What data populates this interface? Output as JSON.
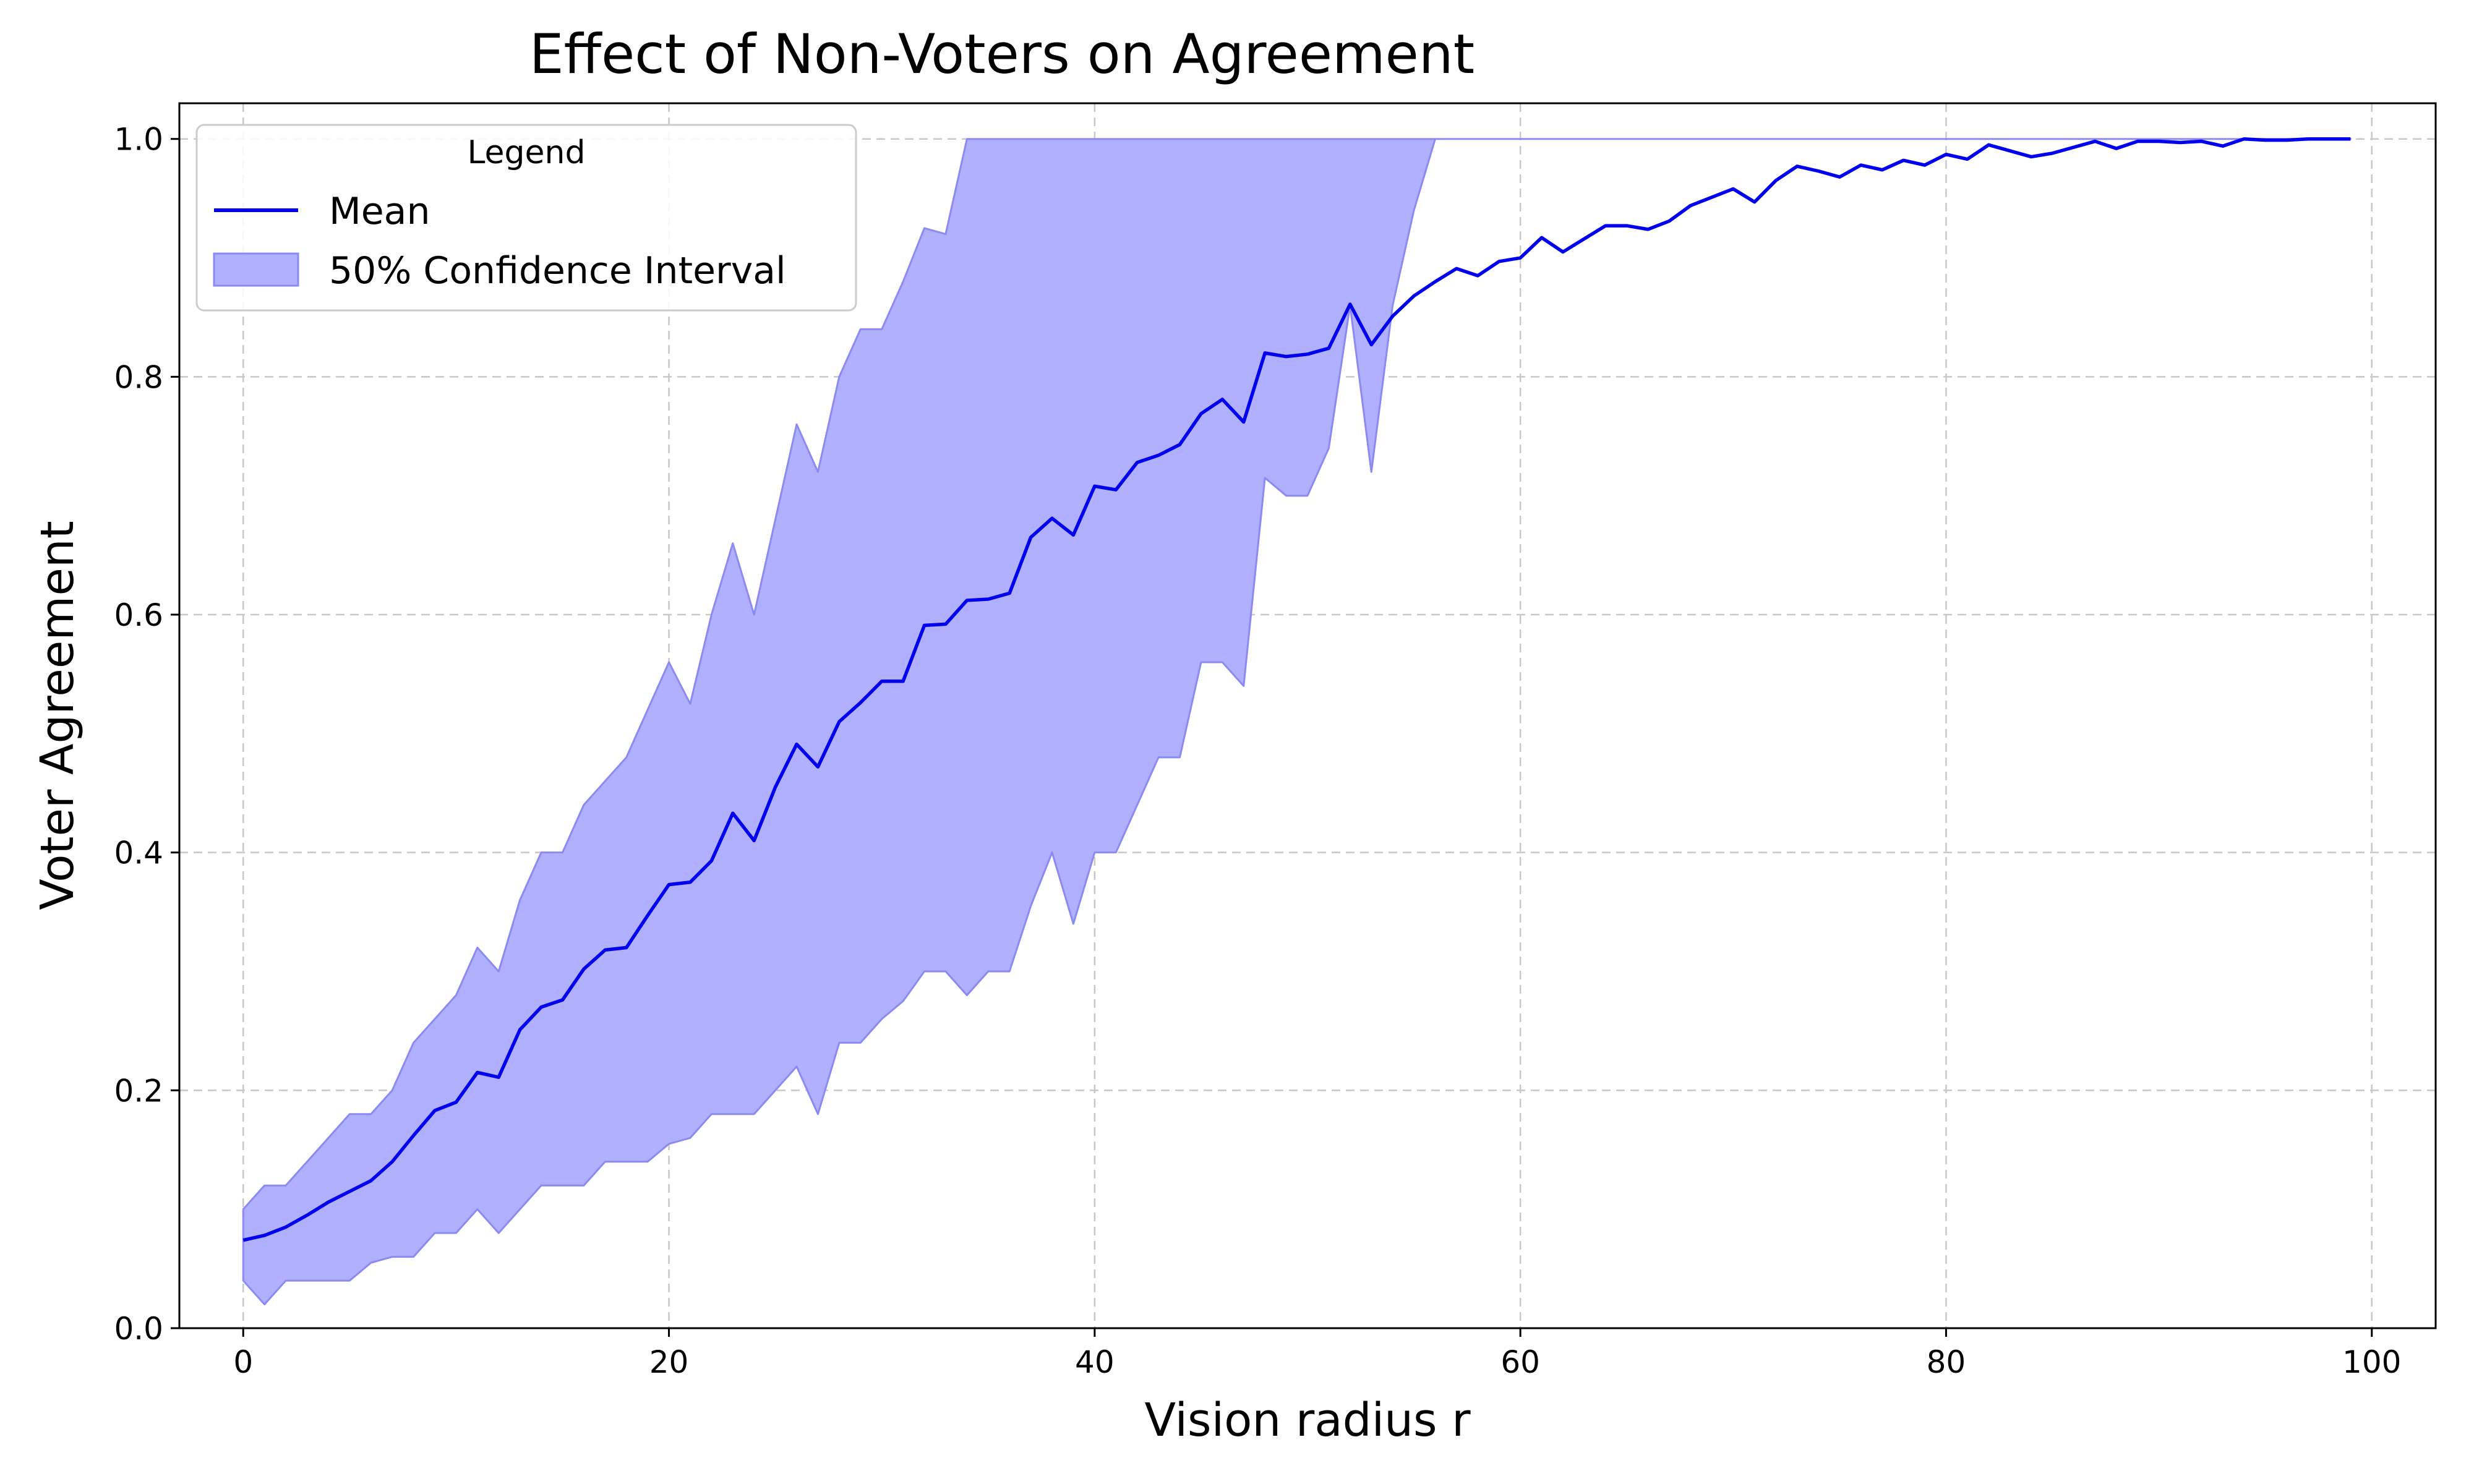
{
  "chart_data": {
    "type": "line",
    "title": "Effect of Non-Voters on Agreement",
    "xlabel": "Vision radius r",
    "ylabel": "Voter Agreement",
    "xlim": [
      -3,
      103
    ],
    "ylim": [
      0,
      1.03
    ],
    "xticks": [
      0,
      20,
      40,
      60,
      80,
      100
    ],
    "yticks": [
      0.0,
      0.2,
      0.4,
      0.6,
      0.8,
      1.0
    ],
    "xtick_labels": [
      "0",
      "20",
      "40",
      "60",
      "80",
      "100"
    ],
    "ytick_labels": [
      "0.0",
      "0.2",
      "0.4",
      "0.6",
      "0.8",
      "1.0"
    ],
    "grid": true,
    "legend": {
      "title": "Legend",
      "placement": "top-left",
      "entries": [
        "Mean",
        "50% Confidence Interval"
      ]
    },
    "colors": {
      "mean": "#0000ee",
      "band_fill": "#b0b0ff",
      "band_edge": "#8a8af2",
      "grid": "#c8c8c8"
    },
    "x": [
      0,
      1,
      2,
      3,
      4,
      5,
      6,
      7,
      8,
      9,
      10,
      11,
      12,
      13,
      14,
      15,
      16,
      17,
      18,
      19,
      20,
      21,
      22,
      23,
      24,
      25,
      26,
      27,
      28,
      29,
      30,
      31,
      32,
      33,
      34,
      35,
      36,
      37,
      38,
      39,
      40,
      41,
      42,
      43,
      44,
      45,
      46,
      47,
      48,
      49,
      50,
      51,
      52,
      53,
      54,
      55,
      56,
      57,
      58,
      59,
      60,
      61,
      62,
      63,
      64,
      65,
      66,
      67,
      68,
      69,
      70,
      71,
      72,
      73,
      74,
      75,
      76,
      77,
      78,
      79,
      80,
      81,
      82,
      83,
      84,
      85,
      86,
      87,
      88,
      89,
      90,
      91,
      92,
      93,
      94,
      95,
      96,
      97,
      98,
      99
    ],
    "series": [
      {
        "name": "Mean",
        "values": [
          0.074,
          0.078,
          0.085,
          0.095,
          0.106,
          0.115,
          0.124,
          0.14,
          0.162,
          0.183,
          0.19,
          0.215,
          0.211,
          0.251,
          0.27,
          0.276,
          0.302,
          0.318,
          0.32,
          0.347,
          0.373,
          0.375,
          0.393,
          0.433,
          0.41,
          0.455,
          0.491,
          0.472,
          0.51,
          0.526,
          0.544,
          0.544,
          0.591,
          0.592,
          0.612,
          0.613,
          0.618,
          0.665,
          0.681,
          0.667,
          0.708,
          0.705,
          0.728,
          0.734,
          0.743,
          0.769,
          0.781,
          0.762,
          0.82,
          0.817,
          0.819,
          0.824,
          0.861,
          0.827,
          0.851,
          0.868,
          0.88,
          0.891,
          0.885,
          0.897,
          0.9,
          0.917,
          0.905,
          0.916,
          0.927,
          0.927,
          0.924,
          0.931,
          0.944,
          0.951,
          0.958,
          0.947,
          0.965,
          0.977,
          0.973,
          0.968,
          0.978,
          0.974,
          0.982,
          0.978,
          0.987,
          0.983,
          0.995,
          0.99,
          0.985,
          0.988,
          0.993,
          0.998,
          0.992,
          0.998,
          0.998,
          0.997,
          0.998,
          0.994,
          1.0,
          0.999,
          0.999,
          1.0,
          1.0,
          1.0
        ]
      }
    ],
    "bands": [
      {
        "name": "50% Confidence Interval",
        "lower": [
          0.04,
          0.02,
          0.04,
          0.04,
          0.04,
          0.04,
          0.055,
          0.06,
          0.06,
          0.08,
          0.08,
          0.1,
          0.08,
          0.1,
          0.12,
          0.12,
          0.12,
          0.14,
          0.14,
          0.14,
          0.155,
          0.16,
          0.18,
          0.18,
          0.18,
          0.2,
          0.22,
          0.18,
          0.24,
          0.24,
          0.26,
          0.275,
          0.3,
          0.3,
          0.28,
          0.3,
          0.3,
          0.355,
          0.4,
          0.34,
          0.4,
          0.4,
          0.44,
          0.48,
          0.48,
          0.56,
          0.56,
          0.54,
          0.715,
          0.7,
          0.7,
          0.74,
          0.86,
          0.72,
          0.86,
          0.94,
          1.0,
          1.0,
          1.0,
          1.0,
          1.0,
          1.0,
          1.0,
          1.0,
          1.0,
          1.0,
          1.0,
          1.0,
          1.0,
          1.0,
          1.0,
          1.0,
          1.0,
          1.0,
          1.0,
          1.0,
          1.0,
          1.0,
          1.0,
          1.0,
          1.0,
          1.0,
          1.0,
          1.0,
          1.0,
          1.0,
          1.0,
          1.0,
          1.0,
          1.0,
          1.0,
          1.0,
          1.0,
          1.0,
          1.0,
          1.0,
          1.0,
          1.0,
          1.0,
          1.0
        ],
        "upper": [
          0.1,
          0.12,
          0.12,
          0.14,
          0.16,
          0.18,
          0.18,
          0.2,
          0.24,
          0.26,
          0.28,
          0.32,
          0.3,
          0.36,
          0.4,
          0.4,
          0.44,
          0.46,
          0.48,
          0.52,
          0.56,
          0.525,
          0.6,
          0.66,
          0.6,
          0.68,
          0.76,
          0.72,
          0.8,
          0.84,
          0.84,
          0.88,
          0.925,
          0.92,
          1.0,
          1.0,
          1.0,
          1.0,
          1.0,
          1.0,
          1.0,
          1.0,
          1.0,
          1.0,
          1.0,
          1.0,
          1.0,
          1.0,
          1.0,
          1.0,
          1.0,
          1.0,
          1.0,
          1.0,
          1.0,
          1.0,
          1.0,
          1.0,
          1.0,
          1.0,
          1.0,
          1.0,
          1.0,
          1.0,
          1.0,
          1.0,
          1.0,
          1.0,
          1.0,
          1.0,
          1.0,
          1.0,
          1.0,
          1.0,
          1.0,
          1.0,
          1.0,
          1.0,
          1.0,
          1.0,
          1.0,
          1.0,
          1.0,
          1.0,
          1.0,
          1.0,
          1.0,
          1.0,
          1.0,
          1.0,
          1.0,
          1.0,
          1.0,
          1.0,
          1.0,
          1.0,
          1.0,
          1.0,
          1.0,
          1.0
        ]
      }
    ]
  }
}
